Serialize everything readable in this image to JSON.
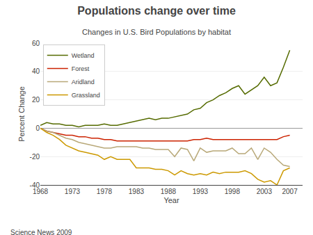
{
  "chart_data": {
    "type": "line",
    "title": "Populations change over time",
    "subtitle": "Changes in U.S. Bird Populations by habitat",
    "annotations": [
      "Science News 2009"
    ],
    "xlabel": "Year",
    "ylabel": "Percent Change",
    "x": [
      1968,
      1969,
      1970,
      1971,
      1972,
      1973,
      1974,
      1975,
      1976,
      1977,
      1978,
      1979,
      1980,
      1981,
      1982,
      1983,
      1984,
      1985,
      1986,
      1987,
      1988,
      1989,
      1990,
      1991,
      1992,
      1993,
      1994,
      1995,
      1996,
      1997,
      1998,
      1999,
      2000,
      2001,
      2002,
      2003,
      2004,
      2005,
      2006,
      2007
    ],
    "series": [
      {
        "name": "Wetland",
        "color": "#556b00",
        "values": [
          2,
          4,
          3,
          3,
          2,
          2,
          1,
          2,
          2,
          2,
          3,
          2,
          2,
          3,
          4,
          5,
          6,
          7,
          6,
          7,
          7,
          8,
          9,
          10,
          13,
          14,
          18,
          20,
          23,
          25,
          28,
          30,
          24,
          27,
          30,
          36,
          30,
          32,
          43,
          55
        ]
      },
      {
        "name": "Forest",
        "color": "#cc2200",
        "values": [
          0,
          -2,
          -3,
          -4,
          -5,
          -5,
          -6,
          -6,
          -7,
          -7,
          -8,
          -8,
          -9,
          -9,
          -9,
          -9,
          -9,
          -9,
          -9,
          -9,
          -9,
          -9,
          -9,
          -9,
          -8,
          -8,
          -7,
          -8,
          -8,
          -8,
          -8,
          -8,
          -8,
          -8,
          -8,
          -8,
          -8,
          -8,
          -6,
          -5
        ]
      },
      {
        "name": "Aridland",
        "color": "#b8a878",
        "values": [
          0,
          -2,
          -3,
          -5,
          -7,
          -8,
          -10,
          -11,
          -12,
          -13,
          -14,
          -14,
          -13,
          -13,
          -13,
          -13,
          -14,
          -14,
          -15,
          -15,
          -15,
          -20,
          -14,
          -15,
          -23,
          -14,
          -17,
          -16,
          -16,
          -16,
          -14,
          -18,
          -18,
          -14,
          -22,
          -14,
          -17,
          -22,
          -26,
          -27
        ]
      },
      {
        "name": "Grassland",
        "color": "#cc9900",
        "values": [
          0,
          -3,
          -5,
          -8,
          -12,
          -14,
          -16,
          -17,
          -18,
          -19,
          -22,
          -20,
          -22,
          -22,
          -22,
          -28,
          -28,
          -28,
          -29,
          -29,
          -30,
          -33,
          -30,
          -32,
          -33,
          -32,
          -33,
          -31,
          -32,
          -31,
          -31,
          -31,
          -30,
          -32,
          -36,
          -38,
          -37,
          -40,
          -30,
          -28
        ]
      }
    ],
    "xlim": [
      1968,
      2009
    ],
    "ylim": [
      -40,
      60
    ],
    "xticks": [
      1968,
      1973,
      1978,
      1983,
      1988,
      1993,
      1998,
      2003,
      2007
    ],
    "yticks": [
      -40,
      -20,
      0,
      20,
      40,
      60
    ],
    "grid": true,
    "legend": "upper left"
  }
}
